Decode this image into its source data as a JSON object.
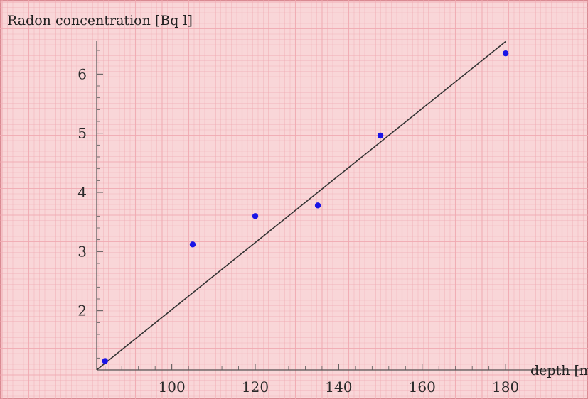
{
  "chart_data": {
    "type": "scatter",
    "ylabel": "Radon concentration [Bq l]",
    "xlabel": "depth [m]",
    "xlim": [
      82,
      181
    ],
    "ylim": [
      1.0,
      6.7
    ],
    "xticks": [
      100,
      120,
      140,
      160,
      180
    ],
    "yticks": [
      2,
      3,
      4,
      5,
      6
    ],
    "grid": true,
    "series": [
      {
        "type": "scatter",
        "x": [
          84,
          105,
          120,
          135,
          150,
          180
        ],
        "y": [
          1.15,
          3.12,
          3.6,
          3.78,
          4.96,
          6.35
        ]
      },
      {
        "type": "line",
        "x": [
          82,
          180
        ],
        "y": [
          1.0,
          6.55
        ]
      }
    ],
    "colors": {
      "background": "#f9d6d8",
      "grid": "#f0a9b0",
      "points": "#1a14e6",
      "fit_line": "#333333",
      "axis": "#555555"
    }
  }
}
